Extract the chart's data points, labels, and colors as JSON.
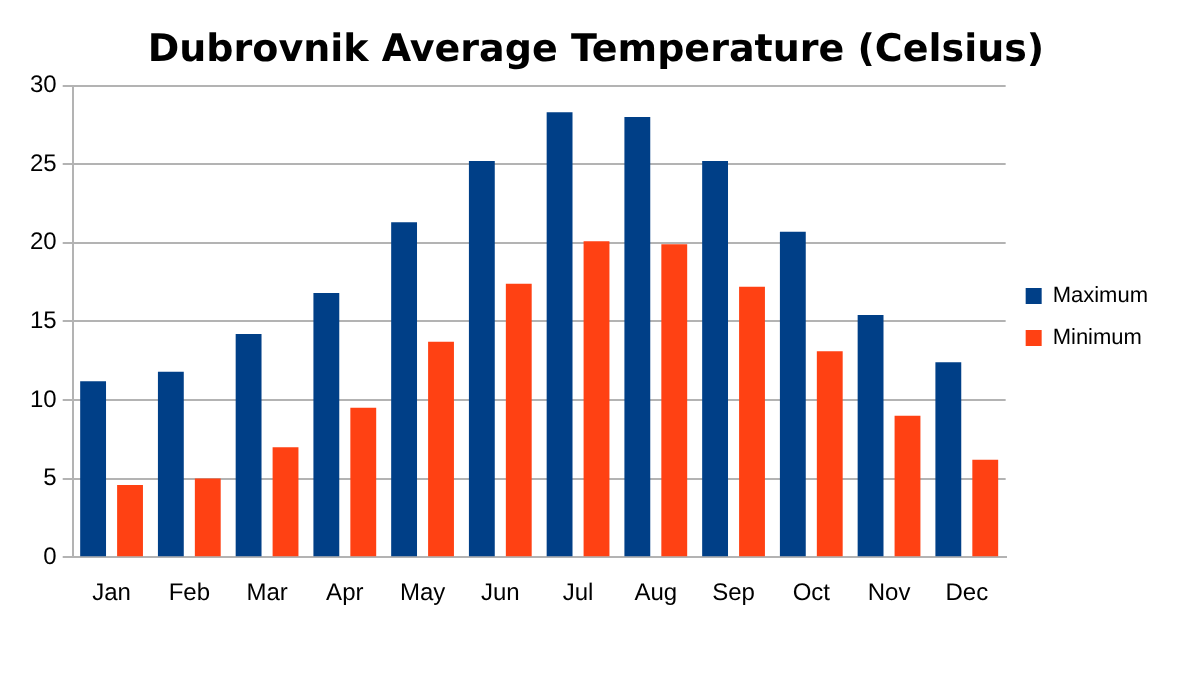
{
  "chart_data": {
    "type": "bar",
    "title": "Dubrovnik Average Temperature (Celsius)",
    "categories": [
      "Jan",
      "Feb",
      "Mar",
      "Apr",
      "May",
      "Jun",
      "Jul",
      "Aug",
      "Sep",
      "Oct",
      "Nov",
      "Dec"
    ],
    "series": [
      {
        "name": "Maximum",
        "color": "#003f87",
        "values": [
          11.2,
          11.8,
          14.2,
          16.8,
          21.3,
          25.2,
          28.3,
          28.0,
          25.2,
          20.7,
          15.4,
          12.4
        ]
      },
      {
        "name": "Minimum",
        "color": "#ff4113",
        "values": [
          4.6,
          5.0,
          7.0,
          9.5,
          13.7,
          17.4,
          20.1,
          19.9,
          17.2,
          13.1,
          9.0,
          6.2
        ]
      }
    ],
    "ylim": [
      0,
      30
    ],
    "yticks": [
      0,
      5,
      10,
      15,
      20,
      25,
      30
    ],
    "grid": "y",
    "legend": "right"
  }
}
